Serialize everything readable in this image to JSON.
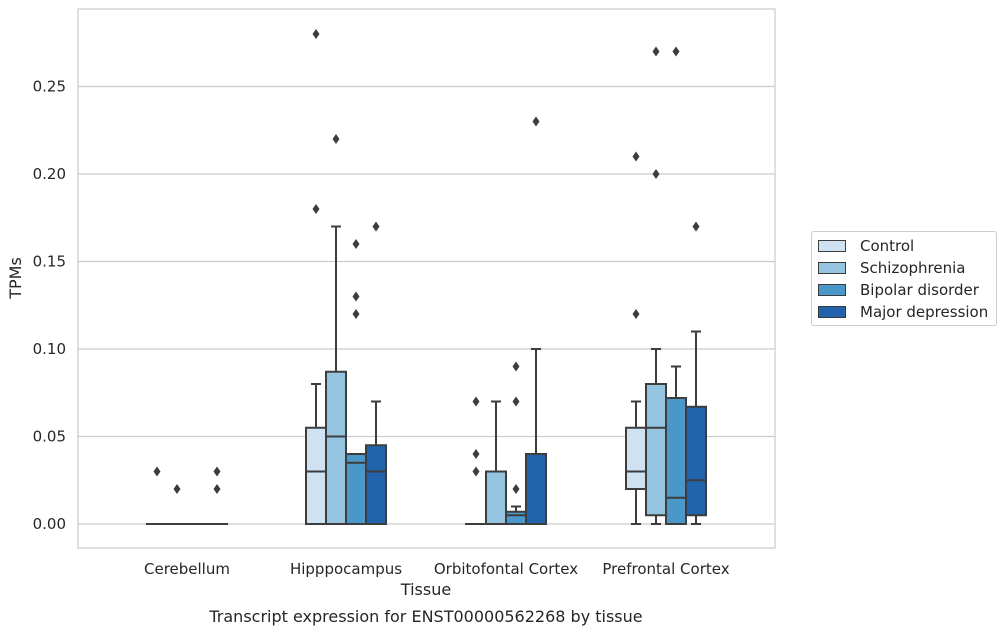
{
  "chart_data": {
    "type": "box",
    "title": "Transcript expression for ENST00000562268 by tissue",
    "xlabel": "Tissue",
    "ylabel": "TPMs",
    "ylim": [
      -0.014,
      0.294
    ],
    "yticks": [
      0.0,
      0.05,
      0.1,
      0.15,
      0.2,
      0.25
    ],
    "ytick_labels": [
      "0.00",
      "0.05",
      "0.10",
      "0.15",
      "0.20",
      "0.25"
    ],
    "grid": "horizontal",
    "legend_placement": "right",
    "categories": [
      "Cerebellum",
      "Hipppocampus",
      "Orbitofontal Cortex",
      "Prefrontal Cortex"
    ],
    "series": [
      {
        "name": "Control",
        "color": "#d0e1f2",
        "boxes": [
          {
            "q1": 0,
            "median": 0,
            "q3": 0,
            "whislo": 0,
            "whishi": 0,
            "fliers": [
              0.03
            ]
          },
          {
            "q1": 0,
            "median": 0.03,
            "q3": 0.055,
            "whislo": 0,
            "whishi": 0.08,
            "fliers": [
              0.18,
              0.28
            ]
          },
          {
            "q1": 0,
            "median": 0,
            "q3": 0,
            "whislo": 0,
            "whishi": 0,
            "fliers": [
              0.03,
              0.04,
              0.07
            ]
          },
          {
            "q1": 0.02,
            "median": 0.03,
            "q3": 0.055,
            "whislo": 0,
            "whishi": 0.07,
            "fliers": [
              0.12,
              0.21
            ]
          }
        ]
      },
      {
        "name": "Schizophrenia",
        "color": "#94c4df",
        "boxes": [
          {
            "q1": 0,
            "median": 0,
            "q3": 0,
            "whislo": 0,
            "whishi": 0,
            "fliers": [
              0.02
            ]
          },
          {
            "q1": 0,
            "median": 0.05,
            "q3": 0.087,
            "whislo": 0,
            "whishi": 0.17,
            "fliers": [
              0.22
            ]
          },
          {
            "q1": 0,
            "median": 0,
            "q3": 0.03,
            "whislo": 0,
            "whishi": 0.07,
            "fliers": []
          },
          {
            "q1": 0.005,
            "median": 0.055,
            "q3": 0.08,
            "whislo": 0,
            "whishi": 0.1,
            "fliers": [
              0.2,
              0.27
            ]
          }
        ]
      },
      {
        "name": "Bipolar disorder",
        "color": "#4a98c9",
        "boxes": [
          {
            "q1": 0,
            "median": 0,
            "q3": 0,
            "whislo": 0,
            "whishi": 0,
            "fliers": []
          },
          {
            "q1": 0,
            "median": 0.035,
            "q3": 0.04,
            "whislo": 0,
            "whishi": 0.04,
            "fliers": [
              0.12,
              0.13,
              0.16
            ]
          },
          {
            "q1": 0,
            "median": 0.005,
            "q3": 0.007,
            "whislo": 0,
            "whishi": 0.01,
            "fliers": [
              0.02,
              0.07,
              0.09
            ]
          },
          {
            "q1": 0,
            "median": 0.015,
            "q3": 0.072,
            "whislo": 0,
            "whishi": 0.09,
            "fliers": [
              0.27
            ]
          }
        ]
      },
      {
        "name": "Major depression",
        "color": "#2164ab",
        "boxes": [
          {
            "q1": 0,
            "median": 0,
            "q3": 0,
            "whislo": 0,
            "whishi": 0,
            "fliers": [
              0.02,
              0.03
            ]
          },
          {
            "q1": 0,
            "median": 0.03,
            "q3": 0.045,
            "whislo": 0,
            "whishi": 0.07,
            "fliers": [
              0.17
            ]
          },
          {
            "q1": 0,
            "median": 0.04,
            "q3": 0.04,
            "whislo": 0,
            "whishi": 0.1,
            "fliers": [
              0.23
            ]
          },
          {
            "q1": 0.005,
            "median": 0.025,
            "q3": 0.067,
            "whislo": 0,
            "whishi": 0.11,
            "fliers": [
              0.17
            ]
          }
        ]
      }
    ]
  }
}
